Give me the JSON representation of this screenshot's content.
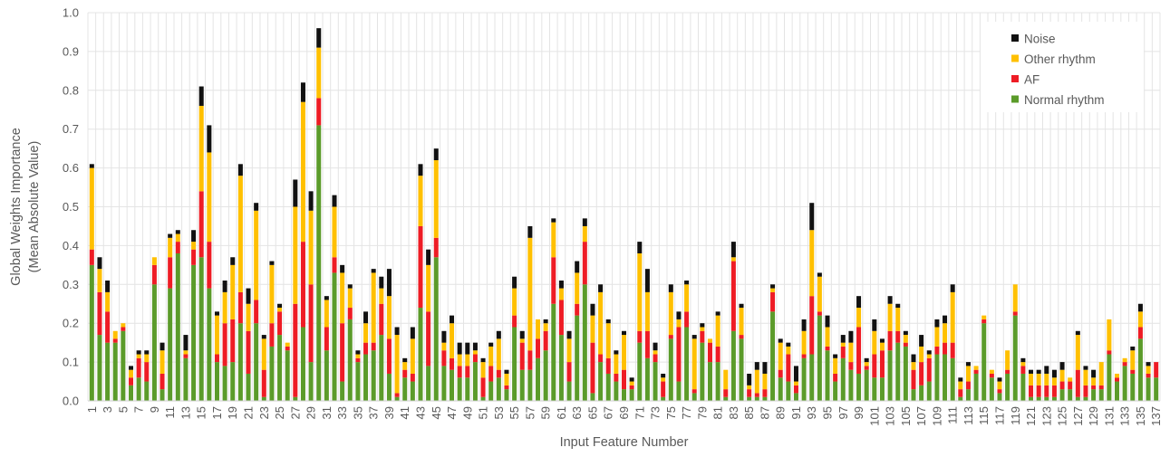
{
  "chart_data": {
    "type": "bar",
    "stacked": true,
    "xlabel": "Input Feature Number",
    "ylabel_lines": [
      "Global Weights Importance",
      "(Mean Absolute Value)"
    ],
    "ylim": [
      0,
      1.0
    ],
    "yticks": [
      "0.0",
      "0.1",
      "0.2",
      "0.3",
      "0.4",
      "0.5",
      "0.6",
      "0.7",
      "0.8",
      "0.9",
      "1.0"
    ],
    "x_tick_every": 2,
    "grid": "vertical and horizontal",
    "legend_position": "top-right",
    "legend_order": [
      "Noise",
      "Other rhythm",
      "AF",
      "Normal rhythm"
    ],
    "series": [
      {
        "name": "Normal rhythm",
        "color": "#5b9b2a"
      },
      {
        "name": "AF",
        "color": "#ee1c25"
      },
      {
        "name": "Other rhythm",
        "color": "#ffc000"
      },
      {
        "name": "Noise",
        "color": "#111111"
      }
    ],
    "totals": [
      0.61,
      0.37,
      0.31,
      0.18,
      0.2,
      0.09,
      0.13,
      0.13,
      0.37,
      0.15,
      0.43,
      0.44,
      0.17,
      0.44,
      0.81,
      0.71,
      0.23,
      0.31,
      0.37,
      0.61,
      0.29,
      0.51,
      0.17,
      0.36,
      0.25,
      0.15,
      0.57,
      0.82,
      0.54,
      0.96,
      0.27,
      0.53,
      0.35,
      0.3,
      0.13,
      0.23,
      0.34,
      0.32,
      0.34,
      0.19,
      0.11,
      0.19,
      0.61,
      0.39,
      0.65,
      0.18,
      0.22,
      0.15,
      0.15,
      0.15,
      0.11,
      0.15,
      0.18,
      0.08,
      0.32,
      0.18,
      0.45,
      0.21,
      0.21,
      0.47,
      0.31,
      0.18,
      0.36,
      0.47,
      0.25,
      0.3,
      0.21,
      0.13,
      0.18,
      0.06,
      0.41,
      0.34,
      0.15,
      0.07,
      0.3,
      0.23,
      0.31,
      0.17,
      0.2,
      0.16,
      0.23,
      0.08,
      0.41,
      0.25,
      0.07,
      0.1,
      0.1,
      0.3,
      0.16,
      0.15,
      0.09,
      0.21,
      0.51,
      0.33,
      0.22,
      0.12,
      0.17,
      0.18,
      0.27,
      0.09,
      0.21,
      0.16,
      0.27,
      0.25,
      0.18,
      0.12,
      0.17,
      0.12,
      0.21,
      0.22,
      0.3,
      0.06,
      0.1,
      0.08,
      0.22,
      0.06,
      0.05,
      0.13,
      0.3,
      0.11,
      0.08,
      0.08,
      0.09,
      0.08,
      0.1,
      0.06,
      0.18,
      0.09,
      0.08,
      0.1,
      0.21,
      0.06,
      0.1,
      0.14,
      0.25,
      0.1,
      0.1
    ],
    "values": {
      "Normal rhythm": [
        0.35,
        0.17,
        0.15,
        0.15,
        0.18,
        0.04,
        0.06,
        0.05,
        0.3,
        0.03,
        0.29,
        0.38,
        0.11,
        0.35,
        0.37,
        0.29,
        0.1,
        0.09,
        0.1,
        0.2,
        0.07,
        0.2,
        0.01,
        0.14,
        0.17,
        0.13,
        0.01,
        0.19,
        0.1,
        0.71,
        0.13,
        0.33,
        0.05,
        0.21,
        0.1,
        0.12,
        0.13,
        0.17,
        0.07,
        0.01,
        0.06,
        0.05,
        0.24,
        0.09,
        0.37,
        0.09,
        0.08,
        0.06,
        0.06,
        0.1,
        0.01,
        0.05,
        0.06,
        0.03,
        0.19,
        0.08,
        0.08,
        0.11,
        0.13,
        0.25,
        0.17,
        0.05,
        0.22,
        0.3,
        0.02,
        0.1,
        0.07,
        0.05,
        0.03,
        0.03,
        0.15,
        0.11,
        0.1,
        0.01,
        0.16,
        0.05,
        0.19,
        0.02,
        0.15,
        0.1,
        0.1,
        0.01,
        0.18,
        0.16,
        0.01,
        0.01,
        0.01,
        0.23,
        0.06,
        0.05,
        0.02,
        0.11,
        0.12,
        0.22,
        0.13,
        0.05,
        0.11,
        0.08,
        0.07,
        0.08,
        0.06,
        0.06,
        0.13,
        0.15,
        0.14,
        0.03,
        0.04,
        0.05,
        0.12,
        0.12,
        0.11,
        0.01,
        0.03,
        0.07,
        0.2,
        0.06,
        0.02,
        0.07,
        0.22,
        0.07,
        0.01,
        0.01,
        0.01,
        0.01,
        0.03,
        0.03,
        0.01,
        0.01,
        0.03,
        0.03,
        0.12,
        0.05,
        0.09,
        0.07,
        0.16,
        0.06,
        0.06
      ],
      "AF": [
        0.04,
        0.11,
        0.08,
        0.01,
        0.01,
        0.02,
        0.05,
        0.05,
        0.05,
        0.04,
        0.08,
        0.03,
        0.01,
        0.04,
        0.17,
        0.12,
        0.02,
        0.11,
        0.11,
        0.08,
        0.11,
        0.06,
        0.07,
        0.06,
        0.06,
        0.01,
        0.24,
        0.22,
        0.2,
        0.07,
        0.06,
        0.04,
        0.15,
        0.03,
        0.01,
        0.03,
        0.02,
        0.08,
        0.09,
        0.01,
        0.02,
        0.02,
        0.21,
        0.14,
        0.05,
        0.04,
        0.03,
        0.03,
        0.03,
        0.02,
        0.05,
        0.04,
        0.02,
        0.01,
        0.03,
        0.07,
        0.05,
        0.05,
        0.05,
        0.12,
        0.09,
        0.05,
        0.03,
        0.11,
        0.13,
        0.02,
        0.04,
        0.02,
        0.05,
        0.01,
        0.03,
        0.07,
        0.02,
        0.04,
        0.01,
        0.14,
        0.04,
        0.01,
        0.03,
        0.05,
        0.04,
        0.02,
        0.18,
        0.01,
        0.02,
        0.01,
        0.02,
        0.05,
        0.02,
        0.07,
        0.02,
        0.01,
        0.15,
        0.01,
        0.01,
        0.02,
        0.03,
        0.02,
        0.12,
        0.01,
        0.06,
        0.07,
        0.05,
        0.03,
        0.01,
        0.05,
        0.06,
        0.06,
        0.02,
        0.03,
        0.04,
        0.02,
        0.02,
        0.01,
        0.01,
        0.01,
        0.01,
        0.01,
        0.01,
        0.02,
        0.03,
        0.03,
        0.03,
        0.03,
        0.02,
        0.02,
        0.07,
        0.03,
        0.01,
        0.01,
        0.01,
        0.01,
        0.01,
        0.01,
        0.03,
        0.01,
        0.04
      ],
      "Other rhythm": [
        0.21,
        0.06,
        0.05,
        0.02,
        0.01,
        0.02,
        0.01,
        0.02,
        0.02,
        0.06,
        0.05,
        0.02,
        0.01,
        0.02,
        0.22,
        0.23,
        0.1,
        0.08,
        0.14,
        0.3,
        0.07,
        0.23,
        0.08,
        0.15,
        0.01,
        0.01,
        0.25,
        0.36,
        0.19,
        0.13,
        0.07,
        0.13,
        0.13,
        0.05,
        0.01,
        0.05,
        0.18,
        0.04,
        0.11,
        0.15,
        0.02,
        0.09,
        0.13,
        0.12,
        0.2,
        0.02,
        0.09,
        0.03,
        0.03,
        0.01,
        0.04,
        0.05,
        0.08,
        0.03,
        0.07,
        0.01,
        0.29,
        0.05,
        0.02,
        0.09,
        0.03,
        0.06,
        0.08,
        0.04,
        0.07,
        0.16,
        0.09,
        0.05,
        0.09,
        0.01,
        0.2,
        0.1,
        0.01,
        0.01,
        0.11,
        0.02,
        0.07,
        0.13,
        0.01,
        0.01,
        0.08,
        0.05,
        0.01,
        0.07,
        0.01,
        0.06,
        0.04,
        0.01,
        0.07,
        0.02,
        0.01,
        0.06,
        0.17,
        0.09,
        0.05,
        0.04,
        0.01,
        0.05,
        0.05,
        0.01,
        0.06,
        0.02,
        0.07,
        0.06,
        0.02,
        0.02,
        0.04,
        0.01,
        0.05,
        0.05,
        0.13,
        0.02,
        0.04,
        0.01,
        0.01,
        0.01,
        0.02,
        0.05,
        0.07,
        0.01,
        0.03,
        0.03,
        0.03,
        0.02,
        0.03,
        0.01,
        0.09,
        0.04,
        0.02,
        0.06,
        0.08,
        0.01,
        0.01,
        0.05,
        0.04,
        0.02,
        0.0
      ],
      "Noise": [
        0.01,
        0.03,
        0.03,
        0.0,
        0.0,
        0.01,
        0.01,
        0.01,
        0.0,
        0.02,
        0.01,
        0.01,
        0.04,
        0.03,
        0.05,
        0.07,
        0.01,
        0.03,
        0.02,
        0.03,
        0.04,
        0.02,
        0.01,
        0.01,
        0.01,
        0.0,
        0.07,
        0.05,
        0.05,
        0.05,
        0.01,
        0.03,
        0.02,
        0.01,
        0.01,
        0.03,
        0.01,
        0.03,
        0.07,
        0.02,
        0.01,
        0.03,
        0.03,
        0.04,
        0.03,
        0.03,
        0.02,
        0.03,
        0.03,
        0.02,
        0.01,
        0.01,
        0.02,
        0.01,
        0.03,
        0.02,
        0.03,
        0.0,
        0.01,
        0.01,
        0.02,
        0.02,
        0.03,
        0.02,
        0.03,
        0.02,
        0.01,
        0.01,
        0.01,
        0.01,
        0.03,
        0.06,
        0.02,
        0.01,
        0.02,
        0.02,
        0.01,
        0.01,
        0.01,
        0.0,
        0.01,
        0.0,
        0.04,
        0.01,
        0.03,
        0.02,
        0.03,
        0.01,
        0.01,
        0.01,
        0.04,
        0.03,
        0.07,
        0.01,
        0.03,
        0.01,
        0.02,
        0.03,
        0.03,
        0.01,
        0.03,
        0.01,
        0.02,
        0.01,
        0.01,
        0.02,
        0.03,
        0.01,
        0.02,
        0.02,
        0.02,
        0.01,
        0.01,
        0.0,
        0.0,
        0.0,
        0.01,
        0.0,
        0.0,
        0.01,
        0.01,
        0.01,
        0.02,
        0.02,
        0.02,
        0.0,
        0.01,
        0.01,
        0.02,
        0.0,
        0.0,
        0.0,
        0.0,
        0.01,
        0.02,
        0.01,
        0.0
      ]
    }
  }
}
